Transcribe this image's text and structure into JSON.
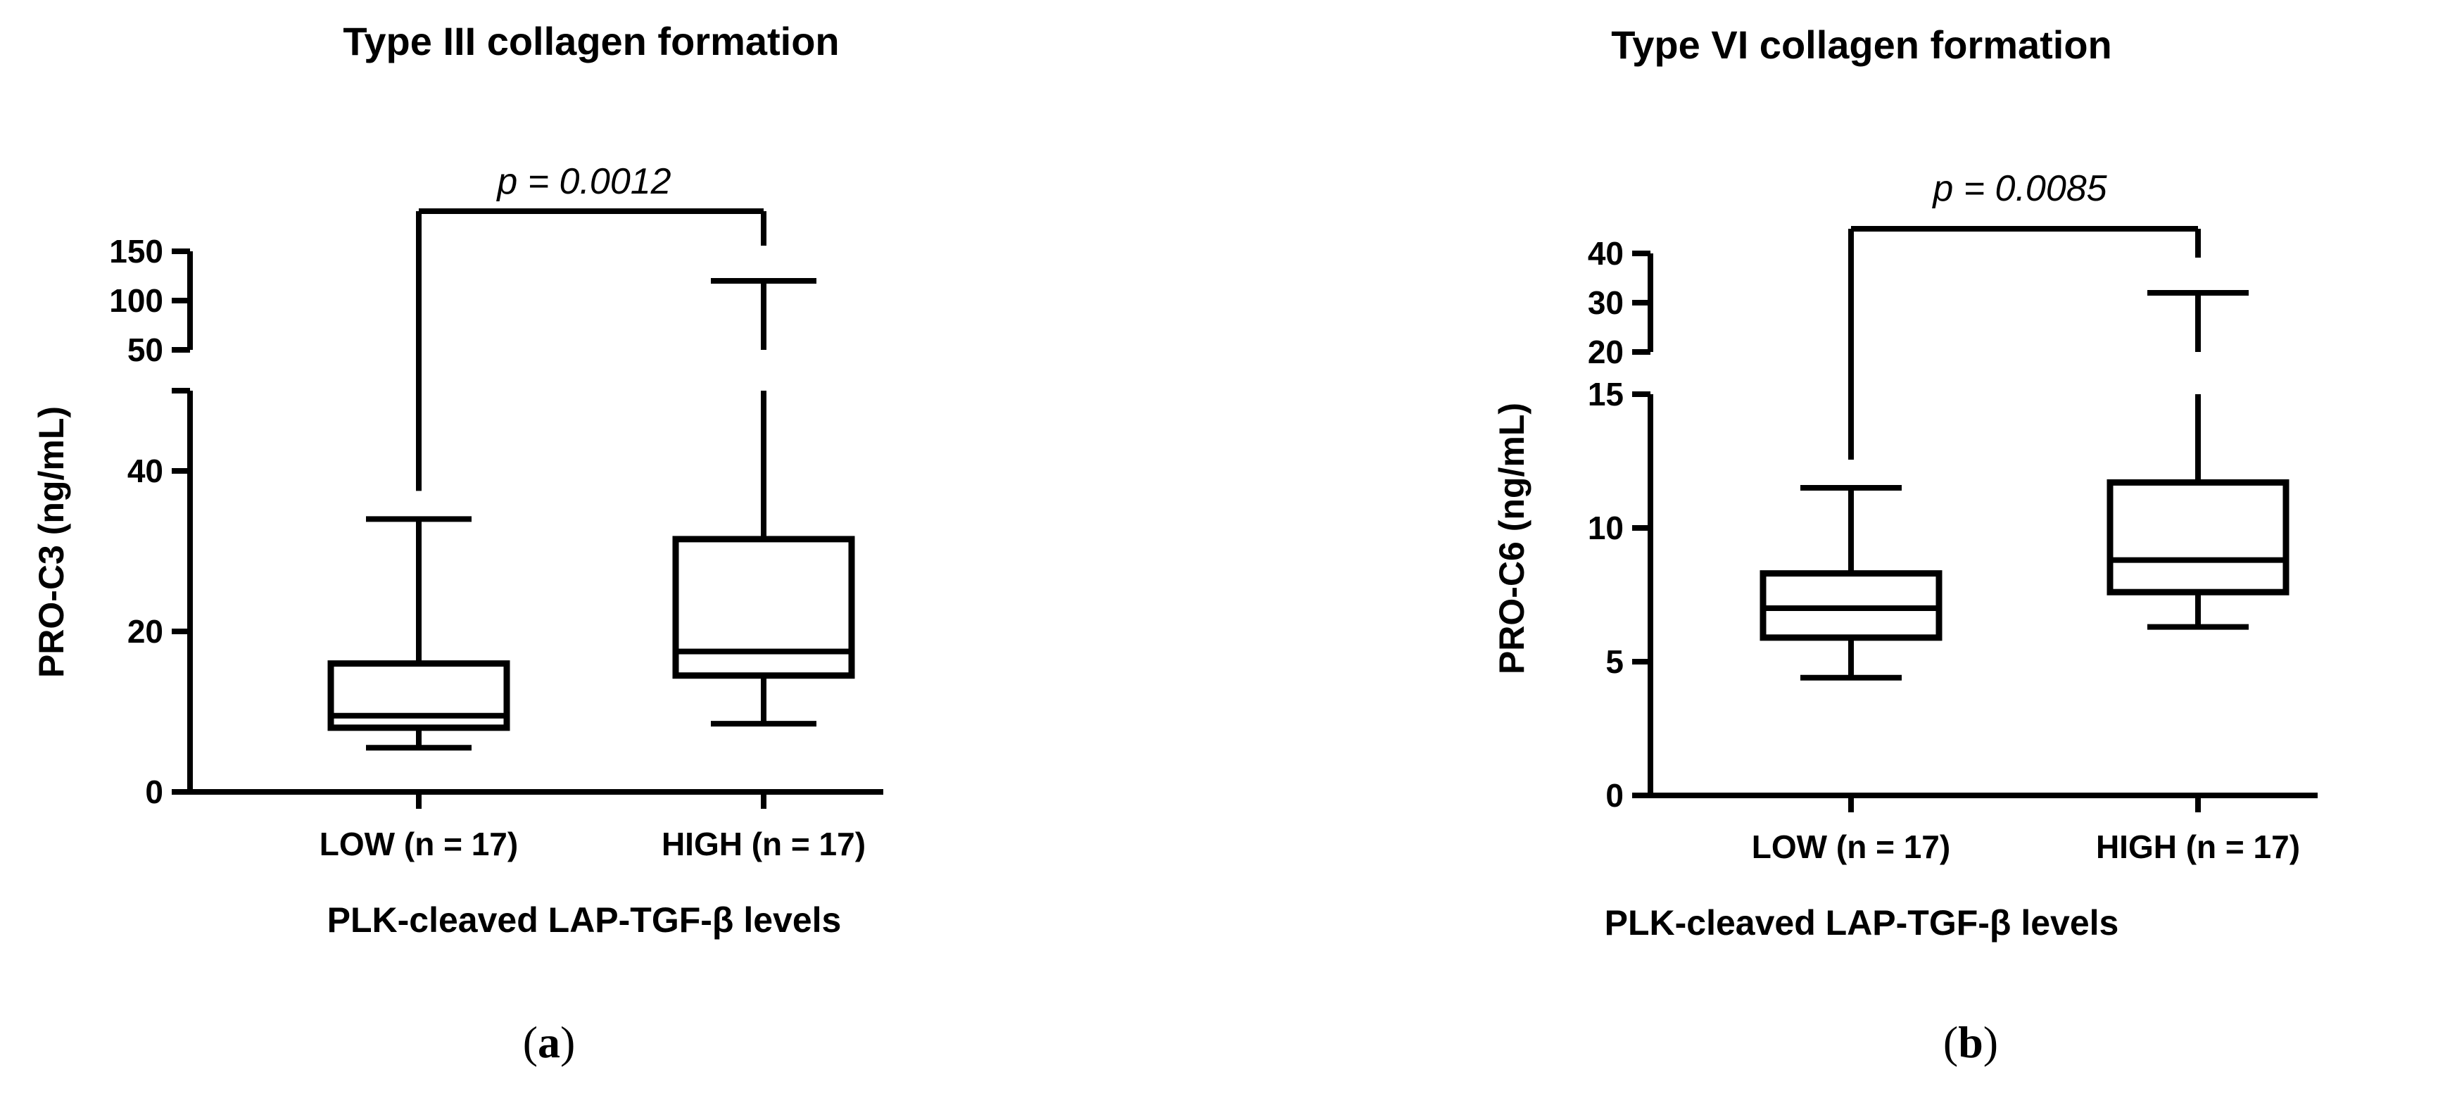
{
  "chart_data": [
    {
      "type": "box",
      "panel_label": "a",
      "title": "Type III collagen formation",
      "xlabel": "PLK-cleaved LAP-TGF-β levels",
      "ylabel": "PRO-C3 (ng/mL)",
      "y_axis_broken": true,
      "y_lower_range": [
        0,
        50
      ],
      "y_lower_ticks": [
        0,
        20,
        40
      ],
      "y_upper_range": [
        50,
        150
      ],
      "y_upper_ticks": [
        50,
        100,
        150
      ],
      "categories": [
        "LOW (n = 17)",
        "HIGH (n = 17)"
      ],
      "boxes": [
        {
          "category": "LOW (n = 17)",
          "min": 5.5,
          "q1": 8,
          "median": 9.5,
          "q3": 16,
          "max": 34
        },
        {
          "category": "HIGH (n = 17)",
          "min": 8.5,
          "q1": 14.5,
          "median": 17.5,
          "q3": 31.5,
          "max": 120
        }
      ],
      "annotation": {
        "text": "p = 0.0012",
        "between": [
          "LOW (n = 17)",
          "HIGH (n = 17)"
        ]
      }
    },
    {
      "type": "box",
      "panel_label": "b",
      "title": "Type VI collagen formation",
      "xlabel": "PLK-cleaved LAP-TGF-β levels",
      "ylabel": "PRO-C6 (ng/mL)",
      "y_axis_broken": true,
      "y_lower_range": [
        0,
        15
      ],
      "y_lower_ticks": [
        0,
        5,
        10,
        15
      ],
      "y_upper_range": [
        20,
        40
      ],
      "y_upper_ticks": [
        20,
        30,
        40
      ],
      "categories": [
        "LOW (n = 17)",
        "HIGH (n = 17)"
      ],
      "boxes": [
        {
          "category": "LOW (n = 17)",
          "min": 4.4,
          "q1": 5.9,
          "median": 7.0,
          "q3": 8.3,
          "max": 11.5
        },
        {
          "category": "HIGH (n = 17)",
          "min": 6.3,
          "q1": 7.6,
          "median": 8.8,
          "q3": 11.7,
          "max": 32
        }
      ],
      "annotation": {
        "text": "p = 0.0085",
        "between": [
          "LOW (n = 17)",
          "HIGH (n = 17)"
        ]
      }
    }
  ]
}
